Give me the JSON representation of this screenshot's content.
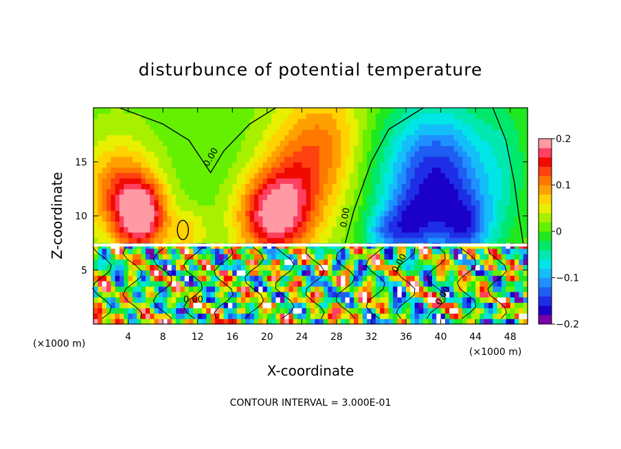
{
  "chart_data": {
    "type": "heatmap",
    "title": "disturbunce of potential temperature",
    "xlabel": "X-coordinate",
    "ylabel": "Z-coordinate",
    "x_unit_left": "(×1000 m)",
    "x_unit_right": "(×1000 m)",
    "footer": "CONTOUR INTERVAL = 3.000E-01",
    "xlim": [
      0,
      50
    ],
    "ylim": [
      0,
      20
    ],
    "x_ticks": [
      4,
      8,
      12,
      16,
      20,
      24,
      28,
      32,
      36,
      40,
      44,
      48
    ],
    "x_tick_labels": [
      "4",
      "8",
      "12",
      "16",
      "20",
      "24",
      "28",
      "32",
      "36",
      "40",
      "44",
      "48"
    ],
    "y_ticks": [
      5,
      10,
      15
    ],
    "y_tick_labels": [
      "5",
      "10",
      "15"
    ],
    "colorbar": {
      "min": -0.2,
      "max": 0.2,
      "tick_values": [
        0.2,
        0.1,
        0,
        -0.1,
        -0.2
      ],
      "tick_labels": [
        "0.2",
        "0.1",
        "0",
        "−0.1",
        "−0.2"
      ],
      "colors": [
        "#7a00a8",
        "#1a00c8",
        "#1e2ee6",
        "#1e5ef2",
        "#1e90ff",
        "#14bef8",
        "#00e6e6",
        "#00e8b0",
        "#00e86a",
        "#1fe81f",
        "#64f000",
        "#a8f000",
        "#e6f000",
        "#ffd200",
        "#ffa000",
        "#ff7800",
        "#ff4010",
        "#f00a00",
        "#ff4060",
        "#ff9aa4"
      ]
    },
    "contour_labels": [
      "0.00",
      "0.00",
      "0.00",
      "0.00",
      "0.00"
    ],
    "field": {
      "upper_layer_z_range": [
        7.3,
        20
      ],
      "features": [
        {
          "x": 5.5,
          "z": 10.0,
          "sigma_x": 2.0,
          "sigma_z": 2.2,
          "value": 0.18
        },
        {
          "x": 3.0,
          "z": 12.5,
          "sigma_x": 2.8,
          "sigma_z": 3.0,
          "value": 0.1
        },
        {
          "x": 20.5,
          "z": 10.0,
          "sigma_x": 2.8,
          "sigma_z": 2.6,
          "value": 0.15
        },
        {
          "x": 23.0,
          "z": 13.0,
          "sigma_x": 3.0,
          "sigma_z": 4.0,
          "value": 0.09
        },
        {
          "x": 27.0,
          "z": 17.0,
          "sigma_x": 3.0,
          "sigma_z": 4.0,
          "value": 0.07
        },
        {
          "x": 39.5,
          "z": 13.0,
          "sigma_x": 4.5,
          "sigma_z": 5.0,
          "value": -0.18
        },
        {
          "x": 36.0,
          "z": 9.0,
          "sigma_x": 2.0,
          "sigma_z": 2.0,
          "value": -0.08
        },
        {
          "x": 43.0,
          "z": 9.0,
          "sigma_x": 2.0,
          "sigma_z": 2.0,
          "value": -0.08
        },
        {
          "x": 33.0,
          "z": 8.5,
          "sigma_x": 1.5,
          "sigma_z": 1.3,
          "value": -0.06
        },
        {
          "x": 47.5,
          "z": 15.0,
          "sigma_x": 2.0,
          "sigma_z": 5.0,
          "value": -0.03
        },
        {
          "x": 14.0,
          "z": 16.0,
          "sigma_x": 4.0,
          "sigma_z": 4.0,
          "value": -0.01
        },
        {
          "x": 11.0,
          "z": 8.5,
          "sigma_x": 1.5,
          "sigma_z": 1.5,
          "value": 0.05
        }
      ]
    }
  }
}
